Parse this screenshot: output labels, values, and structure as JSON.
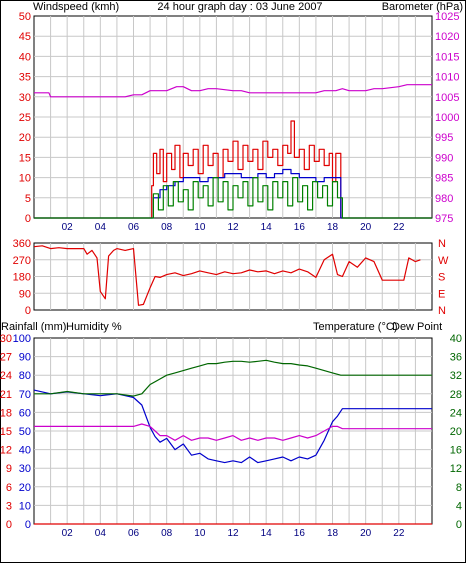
{
  "colors": {
    "wind": "#e00000",
    "gust": "#e00000",
    "avg_wind": "#0000cc",
    "windspeed_green": "#008000",
    "barometer": "#cc00cc",
    "direction": "#e00000",
    "rainfall": "#e00000",
    "humidity": "#0000cc",
    "temperature": "#006600",
    "dewpoint": "#cc00cc",
    "grid": "#c8c8c8",
    "frame": "#000000"
  },
  "chart_data": [
    {
      "type": "line",
      "title": "24 hour graph day : 03 June 2007",
      "left_axis_label": "Windspeed (kmh)",
      "right_axis_label": "Barometer (hPa)",
      "x_ticks": [
        "02",
        "04",
        "06",
        "08",
        "10",
        "12",
        "14",
        "16",
        "18",
        "20",
        "22"
      ],
      "left_ticks": [
        "0",
        "5",
        "10",
        "15",
        "20",
        "25",
        "30",
        "35",
        "40",
        "45",
        "50"
      ],
      "right_ticks": [
        "975",
        "980",
        "985",
        "990",
        "995",
        "1000",
        "1005",
        "1010",
        "1015",
        "1020",
        "1025"
      ],
      "left_ylim": [
        0,
        50
      ],
      "right_ylim": [
        975,
        1025
      ],
      "xlim": [
        0,
        24
      ],
      "grid": true,
      "series": [
        {
          "key": "barometer",
          "axis": "right",
          "x": [
            0,
            0.9,
            1.0,
            5.5,
            6.0,
            6.5,
            7.0,
            8.0,
            8.6,
            9.0,
            9.5,
            10.0,
            10.5,
            11.0,
            12.0,
            12.5,
            13.0,
            17.0,
            17.5,
            18.2,
            18.6,
            19.0,
            20.0,
            20.5,
            21.0,
            22.0,
            22.5,
            24.0
          ],
          "values": [
            1006,
            1006,
            1005,
            1005,
            1005.5,
            1005.5,
            1006.5,
            1006.5,
            1007.5,
            1007.5,
            1006.5,
            1006.5,
            1007,
            1007,
            1006.5,
            1006.5,
            1006,
            1006,
            1006.5,
            1006.5,
            1007,
            1006.5,
            1006.5,
            1007,
            1007,
            1007.5,
            1008,
            1008
          ]
        },
        {
          "key": "wind",
          "axis": "left",
          "x": [
            0,
            6.8,
            7.1,
            7.2,
            7.4,
            7.6,
            7.8,
            8.0,
            8.3,
            8.5,
            8.8,
            9.0,
            9.3,
            9.6,
            9.9,
            10.2,
            10.5,
            10.8,
            11.1,
            11.4,
            11.7,
            12.0,
            12.3,
            12.6,
            12.9,
            13.2,
            13.5,
            13.8,
            14.1,
            14.4,
            14.7,
            15.0,
            15.3,
            15.5,
            15.7,
            16.0,
            16.3,
            16.6,
            16.9,
            17.2,
            17.5,
            17.8,
            18.0,
            18.2,
            18.5,
            24.0
          ],
          "values": [
            0,
            0,
            8,
            16,
            11,
            17,
            9,
            16,
            12,
            18,
            10,
            16,
            13,
            17,
            11,
            18,
            13,
            16,
            10,
            17,
            14,
            19,
            12,
            18,
            14,
            17,
            12,
            19,
            15,
            17,
            13,
            18,
            16,
            24,
            15,
            17,
            12,
            18,
            14,
            17,
            13,
            16,
            9,
            16,
            0,
            0
          ]
        },
        {
          "key": "avg_wind",
          "axis": "left",
          "x": [
            0,
            6.8,
            7.2,
            7.6,
            8.0,
            8.5,
            9.0,
            9.5,
            10.0,
            10.5,
            11.0,
            11.5,
            12.0,
            12.5,
            13.0,
            13.5,
            14.0,
            14.5,
            15.0,
            15.5,
            16.0,
            16.5,
            17.0,
            17.5,
            18.0,
            18.5,
            24.0
          ],
          "values": [
            0,
            0,
            5,
            7,
            8,
            9,
            10,
            10,
            9,
            10,
            10,
            11,
            11,
            10,
            10,
            11,
            10,
            11,
            12,
            11,
            10,
            10,
            9,
            10,
            10,
            0,
            0
          ]
        },
        {
          "key": "windspeed_green",
          "axis": "left",
          "x": [
            0,
            6.9,
            7.2,
            7.5,
            7.8,
            8.1,
            8.4,
            8.7,
            9.0,
            9.3,
            9.6,
            9.9,
            10.2,
            10.5,
            10.8,
            11.1,
            11.4,
            11.7,
            12.0,
            12.3,
            12.6,
            12.9,
            13.2,
            13.5,
            13.8,
            14.1,
            14.4,
            14.7,
            15.0,
            15.3,
            15.6,
            15.9,
            16.2,
            16.5,
            16.8,
            17.1,
            17.4,
            17.7,
            18.0,
            18.3,
            18.6,
            24.0
          ],
          "values": [
            0,
            0,
            6,
            2,
            8,
            3,
            9,
            4,
            7,
            2,
            9,
            5,
            8,
            3,
            10,
            4,
            9,
            2,
            8,
            5,
            9,
            3,
            10,
            4,
            8,
            2,
            9,
            5,
            9,
            3,
            10,
            4,
            8,
            2,
            9,
            5,
            8,
            3,
            9,
            5,
            0,
            0
          ]
        }
      ]
    },
    {
      "type": "line",
      "left_ticks": [
        "360",
        "270",
        "180",
        "90",
        "0"
      ],
      "right_ticks": [
        "N",
        "W",
        "S",
        "E",
        "N"
      ],
      "ylim": [
        0,
        360
      ],
      "xlim": [
        0,
        24
      ],
      "grid": true,
      "series": [
        {
          "key": "direction",
          "x": [
            0,
            0.5,
            1.0,
            1.5,
            2.0,
            2.5,
            3.0,
            3.2,
            3.5,
            3.8,
            4.0,
            4.3,
            4.5,
            4.8,
            5.0,
            5.5,
            6.0,
            6.3,
            6.6,
            7.0,
            7.3,
            7.6,
            8.0,
            8.5,
            9.0,
            9.5,
            10.0,
            10.5,
            11.0,
            11.5,
            12.0,
            12.5,
            13.0,
            13.5,
            14.0,
            14.5,
            15.0,
            15.5,
            16.0,
            16.5,
            17.0,
            17.5,
            18.0,
            18.3,
            18.6,
            19.0,
            19.5,
            20.0,
            20.5,
            21.0,
            21.5,
            22.0,
            22.3,
            22.6,
            23.0,
            23.3
          ],
          "values": [
            340,
            345,
            330,
            335,
            330,
            330,
            330,
            300,
            320,
            280,
            100,
            60,
            290,
            320,
            330,
            320,
            330,
            25,
            30,
            120,
            180,
            175,
            190,
            200,
            185,
            195,
            210,
            200,
            190,
            205,
            195,
            200,
            215,
            205,
            210,
            195,
            210,
            200,
            220,
            205,
            175,
            270,
            300,
            190,
            180,
            260,
            230,
            280,
            260,
            160,
            160,
            160,
            160,
            280,
            260,
            270
          ]
        }
      ]
    },
    {
      "type": "line",
      "left_axis_label_1": "Rainfall (mm)",
      "left_axis_label_2": "Humidity %",
      "right_axis_label_1": "Temperature (°C)",
      "right_axis_label_2": "Dew Point",
      "x_ticks": [
        "02",
        "04",
        "06",
        "08",
        "10",
        "12",
        "14",
        "16",
        "18",
        "20",
        "22"
      ],
      "rain_ticks": [
        "0",
        "3",
        "6",
        "9",
        "12",
        "15",
        "18",
        "21",
        "24",
        "27",
        "30"
      ],
      "humidity_ticks": [
        "0",
        "10",
        "20",
        "30",
        "40",
        "50",
        "60",
        "70",
        "80",
        "90",
        "100"
      ],
      "temp_ticks": [
        "0",
        "4",
        "8",
        "12",
        "16",
        "20",
        "24",
        "28",
        "32",
        "36",
        "40"
      ],
      "humidity_ylim": [
        0,
        100
      ],
      "temp_ylim": [
        0,
        40
      ],
      "rain_ylim": [
        0,
        30
      ],
      "xlim": [
        0,
        24
      ],
      "grid": true,
      "series": [
        {
          "key": "humidity",
          "axis": "humidity",
          "x": [
            0,
            1.0,
            2.0,
            3.0,
            4.0,
            5.0,
            6.0,
            6.5,
            7.0,
            7.3,
            7.6,
            8.0,
            8.5,
            9.0,
            9.5,
            10.0,
            10.5,
            11.0,
            11.5,
            12.0,
            12.5,
            13.0,
            13.5,
            14.0,
            14.5,
            15.0,
            15.5,
            16.0,
            16.5,
            17.0,
            17.5,
            18.0,
            18.3,
            18.6,
            24.0
          ],
          "values": [
            72,
            70,
            71,
            70,
            69,
            70,
            68,
            64,
            52,
            47,
            44,
            46,
            40,
            43,
            37,
            38,
            35,
            34,
            33,
            34,
            33,
            36,
            33,
            34,
            35,
            36,
            34,
            36,
            35,
            37,
            45,
            55,
            58,
            62,
            62
          ]
        },
        {
          "key": "temperature",
          "axis": "temp",
          "x": [
            0,
            1.0,
            2.0,
            3.0,
            4.0,
            5.0,
            6.0,
            6.5,
            7.0,
            7.5,
            8.0,
            8.5,
            9.0,
            9.5,
            10.0,
            10.5,
            11.0,
            11.5,
            12.0,
            12.5,
            13.0,
            13.5,
            14.0,
            14.5,
            15.0,
            15.5,
            16.0,
            16.5,
            17.0,
            17.5,
            18.0,
            18.5,
            19.0,
            24.0
          ],
          "values": [
            28,
            28,
            28.5,
            28,
            28,
            28,
            27.5,
            28,
            30,
            31,
            32,
            32.5,
            33,
            33.5,
            34,
            34.5,
            34.5,
            34.8,
            35,
            35,
            34.8,
            35,
            35.2,
            34.8,
            34.5,
            34.5,
            34.2,
            34,
            33.5,
            33,
            32.5,
            32,
            32,
            32
          ]
        },
        {
          "key": "dewpoint",
          "axis": "temp",
          "x": [
            0,
            1.0,
            2.0,
            3.0,
            4.0,
            5.0,
            6.0,
            6.5,
            7.0,
            7.3,
            7.6,
            8.0,
            8.5,
            9.0,
            9.5,
            10.0,
            10.5,
            11.0,
            11.5,
            12.0,
            12.5,
            13.0,
            13.5,
            14.0,
            14.5,
            15.0,
            15.5,
            16.0,
            16.5,
            17.0,
            17.5,
            18.0,
            18.3,
            18.6,
            24.0
          ],
          "values": [
            21,
            21,
            21,
            21,
            21,
            21,
            21,
            21.5,
            21,
            20,
            19,
            19,
            18,
            19,
            18,
            18.5,
            18.5,
            18,
            18.5,
            19,
            18,
            18.5,
            18,
            18.5,
            18.5,
            18,
            18.5,
            19,
            18.5,
            19,
            20,
            21,
            21,
            20.5,
            20.5
          ]
        },
        {
          "key": "rainfall",
          "axis": "rain",
          "x": [
            0,
            24
          ],
          "values": [
            0,
            0
          ]
        }
      ]
    }
  ]
}
